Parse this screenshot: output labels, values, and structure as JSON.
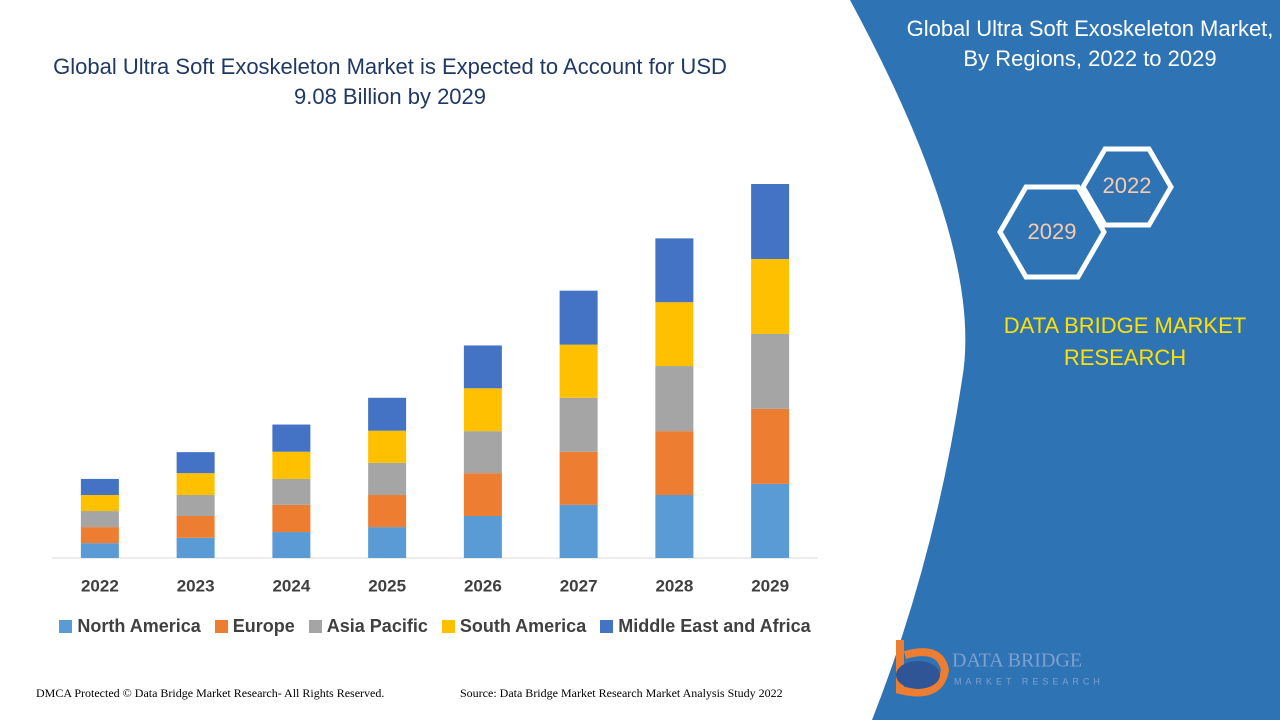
{
  "chart_data": {
    "type": "stacked_bar",
    "title": "Global Ultra Soft Exoskeleton Market is Expected to Account for USD 9.08 Billion by 2029",
    "categories": [
      "2022",
      "2023",
      "2024",
      "2025",
      "2026",
      "2027",
      "2028",
      "2029"
    ],
    "series": [
      {
        "name": "North America",
        "color": "#5b9bd5",
        "values": [
          0.36,
          0.49,
          0.63,
          0.75,
          1.02,
          1.29,
          1.53,
          1.8
        ]
      },
      {
        "name": "Europe",
        "color": "#ed7d31",
        "values": [
          0.39,
          0.53,
          0.66,
          0.78,
          1.04,
          1.29,
          1.55,
          1.82
        ]
      },
      {
        "name": "Asia Pacific",
        "color": "#a5a5a5",
        "values": [
          0.39,
          0.51,
          0.63,
          0.78,
          1.02,
          1.31,
          1.58,
          1.82
        ]
      },
      {
        "name": "South America",
        "color": "#ffc000",
        "values": [
          0.39,
          0.53,
          0.66,
          0.78,
          1.04,
          1.29,
          1.55,
          1.82
        ]
      },
      {
        "name": "Middle East and Africa",
        "color": "#4472c4",
        "values": [
          0.39,
          0.51,
          0.66,
          0.8,
          1.04,
          1.31,
          1.55,
          1.82
        ]
      }
    ],
    "legend": "bottom"
  },
  "panel": {
    "title": "Global Ultra Soft Exoskeleton Market, By Regions, 2022 to 2029",
    "year_start": "2022",
    "year_end": "2029",
    "brand": "DATA BRIDGE MARKET RESEARCH"
  },
  "logo": {
    "name": "DATA BRIDGE",
    "tagline": "MARKET RESEARCH"
  },
  "footer": {
    "copyright": "DMCA Protected © Data Bridge Market Research- All Rights Reserved.",
    "source": "Source: Data Bridge Market Research Market Analysis Study 2022"
  }
}
